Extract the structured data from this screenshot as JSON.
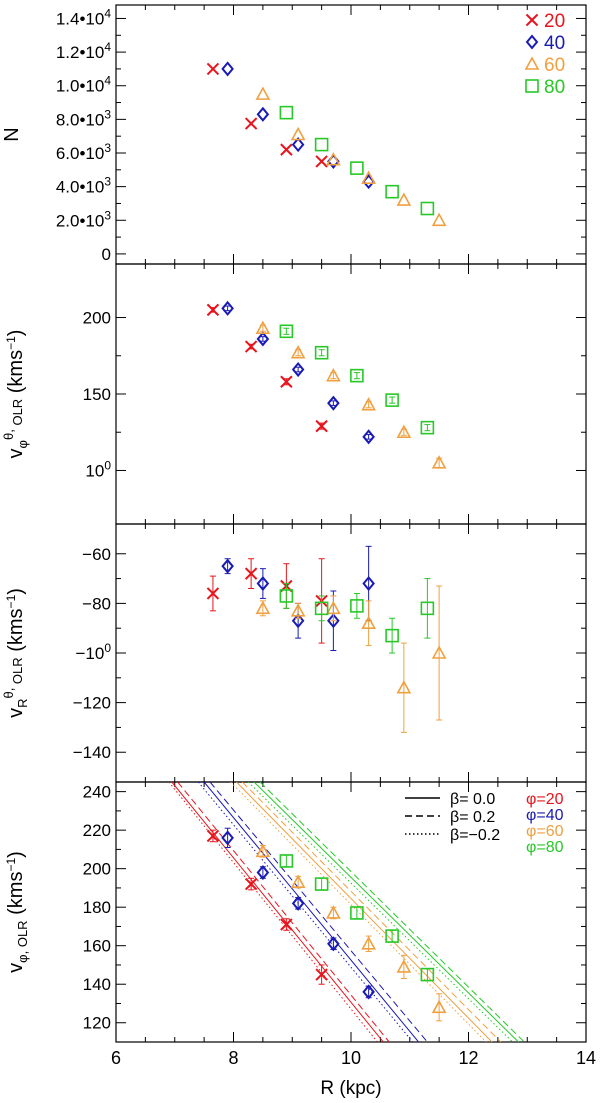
{
  "chart_data": {
    "type": "scatter",
    "shared_x": {
      "label": "R (kpc)",
      "range": [
        6,
        14
      ],
      "ticks": [
        6,
        8,
        10,
        12,
        14
      ]
    },
    "colors": {
      "20": "#e8141c",
      "40": "#1a1ab4",
      "60": "#f0a040",
      "80": "#28c828"
    },
    "panels": [
      {
        "id": "N",
        "ylabel": "N",
        "yrange": [
          -600,
          14800
        ],
        "ytick_values": [
          0,
          2000,
          4000,
          6000,
          8000,
          10000,
          12000,
          14000
        ],
        "ytick_labels": [
          "0",
          "2.0•103",
          "4.0•103",
          "6.0•103",
          "8.0•103",
          "1.0•104",
          "1.2•104",
          "1.4•104"
        ],
        "legend": [
          "20",
          "40",
          "60",
          "80"
        ],
        "series": [
          {
            "name": "20",
            "marker": "x",
            "x": [
              7.65,
              8.3,
              8.9,
              9.5
            ],
            "y": [
              11000,
              7750,
              6200,
              5500
            ],
            "err": [
              0,
              0,
              0,
              0
            ]
          },
          {
            "name": "40",
            "marker": "diamond",
            "x": [
              7.9,
              8.5,
              9.1,
              9.7,
              10.3
            ],
            "y": [
              11000,
              8300,
              6500,
              5500,
              4300
            ],
            "err": [
              0,
              0,
              0,
              0,
              0
            ]
          },
          {
            "name": "60",
            "marker": "triangle",
            "x": [
              8.5,
              9.1,
              9.7,
              10.3,
              10.9,
              11.5
            ],
            "y": [
              9500,
              7100,
              5600,
              4500,
              3200,
              2000
            ],
            "err": [
              0,
              0,
              0,
              0,
              0,
              0
            ]
          },
          {
            "name": "80",
            "marker": "square",
            "x": [
              8.9,
              9.5,
              10.1,
              10.7,
              11.3
            ],
            "y": [
              8400,
              6500,
              5100,
              3700,
              2700
            ],
            "err": [
              0,
              0,
              0,
              0,
              0
            ]
          }
        ]
      },
      {
        "id": "vphi_theta",
        "ylabel": "vφθ, OLR (kms−1)",
        "yrange": [
          65,
          235
        ],
        "ytick_values": [
          100,
          150,
          200
        ],
        "ytick_labels": [
          "100",
          "150",
          "200"
        ],
        "series": [
          {
            "name": "20",
            "marker": "x",
            "x": [
              7.65,
              8.3,
              8.9,
              9.5
            ],
            "y": [
              205,
              181,
              158,
              129
            ],
            "err": [
              1.5,
              1.5,
              2,
              2
            ]
          },
          {
            "name": "40",
            "marker": "diamond",
            "x": [
              7.9,
              8.5,
              9.1,
              9.7,
              10.3
            ],
            "y": [
              206,
              186,
              166,
              144,
              122
            ],
            "err": [
              1.5,
              1.5,
              1.5,
              1.5,
              1.5
            ]
          },
          {
            "name": "60",
            "marker": "triangle",
            "x": [
              8.5,
              9.1,
              9.7,
              10.3,
              10.9,
              11.5
            ],
            "y": [
              193,
              177,
              162,
              143,
              125,
              105
            ],
            "err": [
              2,
              2,
              2,
              2,
              2,
              3
            ]
          },
          {
            "name": "80",
            "marker": "square",
            "x": [
              8.9,
              9.5,
              10.1,
              10.7,
              11.3
            ],
            "y": [
              191,
              177,
              162,
              146,
              128
            ],
            "err": [
              2,
              2,
              2,
              2,
              2
            ]
          }
        ]
      },
      {
        "id": "vR_theta",
        "ylabel": "vRθ, OLR (kms−1)",
        "yrange": [
          -152,
          -48
        ],
        "ytick_values": [
          -140,
          -120,
          -100,
          -80,
          -60
        ],
        "ytick_labels": [
          "−140",
          "−120",
          "−100",
          "−80",
          "−60"
        ],
        "series": [
          {
            "name": "20",
            "marker": "x",
            "x": [
              7.65,
              8.3,
              8.9,
              9.5
            ],
            "y": [
              -76,
              -68,
              -73,
              -79
            ],
            "err": [
              7,
              6,
              9,
              17
            ]
          },
          {
            "name": "40",
            "marker": "diamond",
            "x": [
              7.9,
              8.5,
              9.1,
              9.7,
              10.3
            ],
            "y": [
              -65,
              -72,
              -87,
              -87,
              -72
            ],
            "err": [
              3,
              6,
              7,
              12,
              15
            ]
          },
          {
            "name": "60",
            "marker": "triangle",
            "x": [
              8.5,
              9.1,
              9.7,
              10.3,
              10.9,
              11.5
            ],
            "y": [
              -82,
              -83,
              -82,
              -88,
              -114,
              -100
            ],
            "err": [
              3,
              3,
              5,
              9,
              18,
              27
            ]
          },
          {
            "name": "80",
            "marker": "square",
            "x": [
              8.9,
              9.5,
              10.1,
              10.7,
              11.3
            ],
            "y": [
              -77,
              -82,
              -81,
              -93,
              -82
            ],
            "err": [
              5,
              5,
              5,
              7,
              12
            ]
          }
        ]
      },
      {
        "id": "vphi_olr",
        "ylabel": "vφ, OLR (kms−1)",
        "yrange": [
          110,
          245
        ],
        "ytick_values": [
          120,
          140,
          160,
          180,
          200,
          220,
          240
        ],
        "ytick_labels": [
          "120",
          "140",
          "160",
          "180",
          "200",
          "220",
          "240"
        ],
        "legend_lines": [
          "β= 0.0",
          "β= 0.2",
          "β=−0.2"
        ],
        "legend_phi": [
          "φ=20",
          "φ=40",
          "φ=60",
          "φ=80"
        ],
        "series": [
          {
            "name": "20",
            "marker": "x",
            "x": [
              7.65,
              8.3,
              8.9,
              9.5
            ],
            "y": [
              217,
              192,
              171,
              145
            ],
            "err": [
              3,
              3,
              3,
              5
            ]
          },
          {
            "name": "40",
            "marker": "diamond",
            "x": [
              7.9,
              8.5,
              9.1,
              9.7,
              10.3
            ],
            "y": [
              216,
              198,
              182,
              161,
              136
            ],
            "err": [
              5,
              3,
              3,
              3,
              3
            ]
          },
          {
            "name": "60",
            "marker": "triangle",
            "x": [
              8.5,
              9.1,
              9.7,
              10.3,
              10.9,
              11.5
            ],
            "y": [
              209,
              193,
              177,
              161,
              149,
              128
            ],
            "err": [
              3,
              3,
              3,
              4,
              6,
              7
            ]
          },
          {
            "name": "80",
            "marker": "square",
            "x": [
              8.9,
              9.5,
              10.1,
              10.7,
              11.3
            ],
            "y": [
              204,
              192,
              177,
              165,
              145
            ],
            "err": [
              3,
              3,
              3,
              3,
              3
            ]
          }
        ],
        "model_lines": [
          {
            "name": "20",
            "style": "solid",
            "x": [
              6.95,
              10.55
            ],
            "y": [
              245,
              110
            ]
          },
          {
            "name": "20",
            "style": "dashed",
            "x": [
              7.05,
              10.65
            ],
            "y": [
              245,
              110
            ]
          },
          {
            "name": "20",
            "style": "dotted",
            "x": [
              6.9,
              10.45
            ],
            "y": [
              245,
              110
            ]
          },
          {
            "name": "40",
            "style": "solid",
            "x": [
              7.5,
              11.15
            ],
            "y": [
              245,
              110
            ]
          },
          {
            "name": "40",
            "style": "dashed",
            "x": [
              7.6,
              11.3
            ],
            "y": [
              245,
              110
            ]
          },
          {
            "name": "40",
            "style": "dotted",
            "x": [
              7.4,
              11.05
            ],
            "y": [
              245,
              110
            ]
          },
          {
            "name": "60",
            "style": "solid",
            "x": [
              8.05,
              12.4
            ],
            "y": [
              245,
              110
            ]
          },
          {
            "name": "60",
            "style": "dashed",
            "x": [
              8.15,
              12.55
            ],
            "y": [
              245,
              110
            ]
          },
          {
            "name": "60",
            "style": "dotted",
            "x": [
              7.95,
              12.3
            ],
            "y": [
              245,
              110
            ]
          },
          {
            "name": "80",
            "style": "solid",
            "x": [
              8.35,
              12.85
            ],
            "y": [
              245,
              110
            ]
          },
          {
            "name": "80",
            "style": "dashed",
            "x": [
              8.45,
              12.95
            ],
            "y": [
              245,
              110
            ]
          },
          {
            "name": "80",
            "style": "dotted",
            "x": [
              8.25,
              12.75
            ],
            "y": [
              245,
              110
            ]
          }
        ]
      }
    ]
  }
}
